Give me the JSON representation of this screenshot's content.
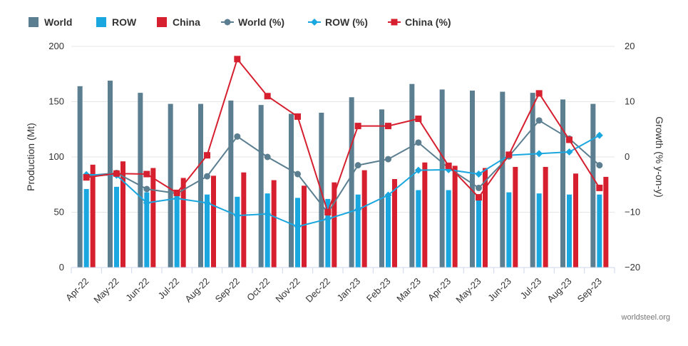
{
  "chart_data": {
    "type": "bar",
    "categories": [
      "Apr-22",
      "May-22",
      "Jun-22",
      "Jul-22",
      "Aug-22",
      "Sep-22",
      "Oct-22",
      "Nov-22",
      "Dec-22",
      "Jan-23",
      "Feb-23",
      "Mar-23",
      "Apr-23",
      "May-23",
      "Jun-23",
      "Jul-23",
      "Aug-23",
      "Sep-23"
    ],
    "bar_series": [
      {
        "name": "World",
        "color": "#5b7f90",
        "values": [
          164,
          169,
          158,
          148,
          148,
          151,
          147,
          139,
          140,
          154,
          143,
          166,
          161,
          160,
          159,
          158,
          152,
          148
        ]
      },
      {
        "name": "ROW",
        "color": "#1aa7df",
        "values": [
          71,
          73,
          68,
          67,
          66,
          64,
          67,
          63,
          62,
          66,
          64,
          70,
          70,
          66,
          68,
          67,
          66,
          66
        ]
      },
      {
        "name": "China",
        "color": "#d6202f",
        "values": [
          93,
          96,
          90,
          81,
          83,
          86,
          79,
          74,
          77,
          88,
          80,
          95,
          92,
          90,
          91,
          91,
          85,
          82
        ]
      }
    ],
    "line_series": [
      {
        "name": "World (%)",
        "color": "#5b7f90",
        "marker": "circle",
        "values": [
          -3.4,
          -2.9,
          -5.8,
          -6.6,
          -3.5,
          3.7,
          0.0,
          -3.1,
          -10.1,
          -1.5,
          -0.4,
          2.6,
          -2.0,
          -5.6,
          0.1,
          6.6,
          3.3,
          -1.5
        ]
      },
      {
        "name": "ROW (%)",
        "color": "#1aa7df",
        "marker": "diamond",
        "values": [
          -3.2,
          -3.3,
          -8.3,
          -7.5,
          -8.3,
          -10.6,
          -10.3,
          -12.6,
          -11.2,
          -9.5,
          -6.9,
          -2.4,
          -2.3,
          -3.1,
          0.3,
          0.6,
          0.9,
          3.9
        ]
      },
      {
        "name": "China (%)",
        "color": "#d6202f",
        "marker": "square",
        "values": [
          -3.7,
          -3.0,
          -3.1,
          -6.5,
          0.3,
          17.7,
          11.0,
          7.3,
          -10.0,
          5.6,
          5.6,
          6.9,
          -1.6,
          -7.3,
          0.4,
          11.5,
          3.1,
          -5.6
        ]
      }
    ],
    "ylabel": "Production (Mt)",
    "ylabel_right": "Growth (% y-on-y)",
    "ylim": [
      0,
      200
    ],
    "yticks": [
      "0",
      "50",
      "100",
      "150",
      "200"
    ],
    "ylim_right": [
      -20,
      20
    ],
    "yticks_right": [
      "−20",
      "−10",
      "0",
      "10",
      "20"
    ],
    "grid": true,
    "legend_position": "top-left",
    "credit": "worldsteel.org"
  }
}
